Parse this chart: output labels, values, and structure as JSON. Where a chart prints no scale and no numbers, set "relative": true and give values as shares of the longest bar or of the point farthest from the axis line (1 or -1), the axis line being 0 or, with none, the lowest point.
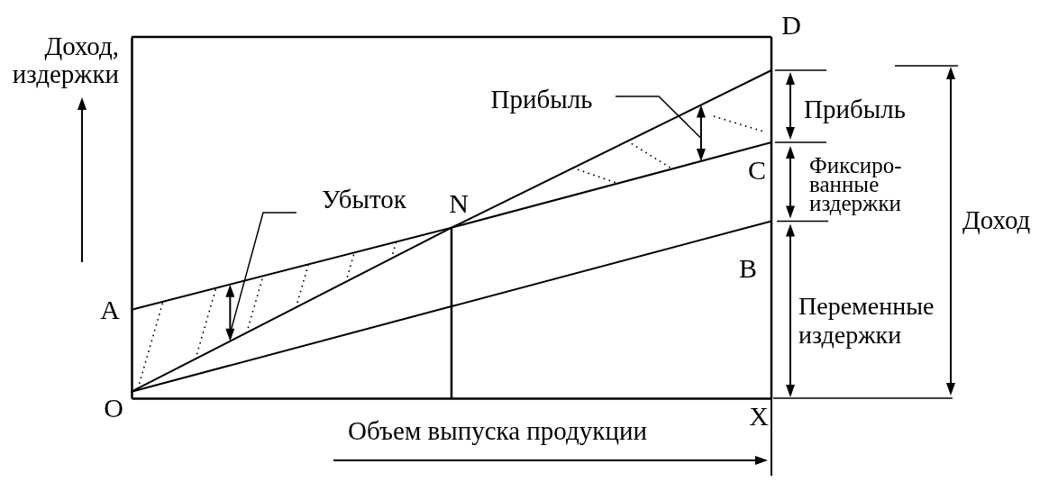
{
  "chart_data": {
    "type": "line",
    "relative": true,
    "xlabel": "Объем выпуска продукции",
    "ylabel": "Доход,\nиздержки",
    "categories": [
      null,
      null,
      null
    ],
    "series": [
      {
        "color": "#000000",
        "values": [
          0.02,
          0.52,
          1
        ]
      },
      {
        "color": "#000000",
        "values": [
          0.27,
          0.52,
          0.78
        ]
      },
      {
        "color": "#000000",
        "values": [
          0.02,
          0.28,
          0.54
        ]
      }
    ],
    "annotations": [
      "D",
      "Прибыль",
      "Прибыль",
      "C",
      "Фиксиро-\nванные\nиздержки",
      "Доход",
      "Убыток",
      {
        "text": "N",
        "y": 0.52
      },
      "B",
      "A",
      "Переменные\nиздержки",
      "O",
      "X"
    ]
  }
}
